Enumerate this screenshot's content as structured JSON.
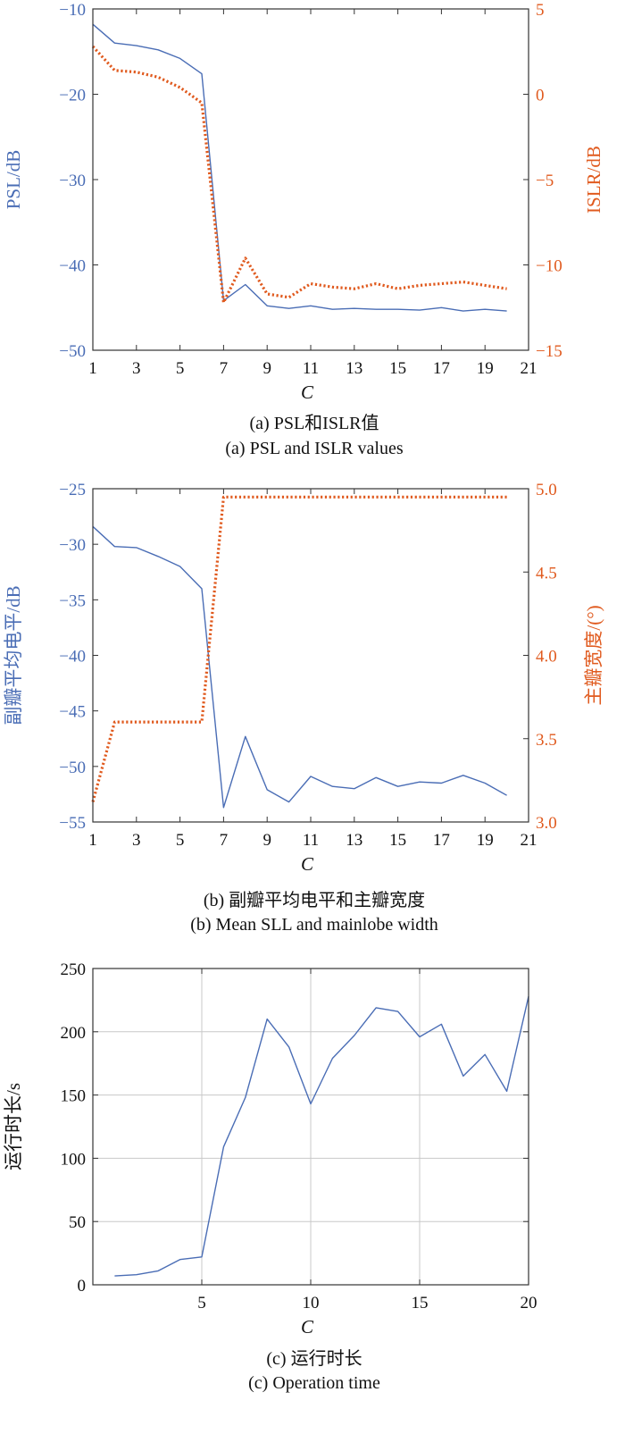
{
  "colors": {
    "blue": "#4a6db5",
    "orange": "#e05a1e",
    "axis": "#333333",
    "grid": "#c8c8c8",
    "text": "#111111"
  },
  "chart_data": [
    {
      "id": "a",
      "type": "line",
      "xlabel": "C",
      "xlim": [
        1,
        21
      ],
      "xticks": [
        1,
        3,
        5,
        7,
        9,
        11,
        13,
        15,
        17,
        19,
        21
      ],
      "grid": false,
      "ylabel_left": "PSL/dB",
      "ylim_left": [
        -50,
        -10
      ],
      "yticks_left": [
        -10,
        -20,
        -30,
        -40,
        -50
      ],
      "ylabel_right": "ISLR/dB",
      "ylim_right": [
        -15,
        5
      ],
      "yticks_right": [
        5,
        0,
        -5,
        -10,
        -15
      ],
      "x": [
        1,
        2,
        3,
        4,
        5,
        6,
        7,
        8,
        9,
        10,
        11,
        12,
        13,
        14,
        15,
        16,
        17,
        18,
        19,
        20
      ],
      "series": [
        {
          "axis": "left",
          "style": "solid",
          "color": "blue",
          "values": [
            -11.8,
            -14.0,
            -14.3,
            -14.8,
            -15.8,
            -17.6,
            -44.2,
            -42.3,
            -44.8,
            -45.1,
            -44.8,
            -45.2,
            -45.1,
            -45.2,
            -45.2,
            -45.3,
            -45.0,
            -45.4,
            -45.2,
            -45.4
          ]
        },
        {
          "axis": "right",
          "style": "dotted",
          "color": "orange",
          "values": [
            2.8,
            1.4,
            1.3,
            1.0,
            0.4,
            -0.5,
            -12.2,
            -9.6,
            -11.7,
            -11.9,
            -11.1,
            -11.3,
            -11.4,
            -11.1,
            -11.4,
            -11.2,
            -11.1,
            -11.0,
            -11.2,
            -11.4
          ]
        }
      ],
      "caption_cn": "(a) PSL和ISLR值",
      "caption_en": "(a) PSL and ISLR values"
    },
    {
      "id": "b",
      "type": "line",
      "xlabel": "C",
      "xlim": [
        1,
        21
      ],
      "xticks": [
        1,
        3,
        5,
        7,
        9,
        11,
        13,
        15,
        17,
        19,
        21
      ],
      "grid": false,
      "ylabel_left": "副瓣平均电平/dB",
      "ylim_left": [
        -55,
        -25
      ],
      "yticks_left": [
        -25,
        -30,
        -35,
        -40,
        -45,
        -50,
        -55
      ],
      "ylabel_right": "主瓣宽度/(°)",
      "ylim_right": [
        3.0,
        5.0
      ],
      "yticks_right": [
        "5.0",
        "4.5",
        "4.0",
        "3.5",
        "3.0"
      ],
      "x": [
        1,
        2,
        3,
        4,
        5,
        6,
        7,
        8,
        9,
        10,
        11,
        12,
        13,
        14,
        15,
        16,
        17,
        18,
        19,
        20
      ],
      "series": [
        {
          "axis": "left",
          "style": "solid",
          "color": "blue",
          "values": [
            -28.4,
            -30.2,
            -30.3,
            -31.1,
            -32.0,
            -34.0,
            -53.7,
            -47.3,
            -52.1,
            -53.2,
            -50.9,
            -51.8,
            -52.0,
            -51.0,
            -51.8,
            -51.4,
            -51.5,
            -50.8,
            -51.5,
            -52.6
          ]
        },
        {
          "axis": "right",
          "style": "dotted",
          "color": "orange",
          "values": [
            3.12,
            3.6,
            3.6,
            3.6,
            3.6,
            3.6,
            4.95,
            4.95,
            4.95,
            4.95,
            4.95,
            4.95,
            4.95,
            4.95,
            4.95,
            4.95,
            4.95,
            4.95,
            4.95,
            4.95
          ]
        }
      ],
      "caption_cn": "(b) 副瓣平均电平和主瓣宽度",
      "caption_en": "(b) Mean SLL and mainlobe width"
    },
    {
      "id": "c",
      "type": "line",
      "xlabel": "C",
      "xlim": [
        0,
        20
      ],
      "xticks": [
        5,
        10,
        15,
        20
      ],
      "grid": true,
      "ylabel_left": "运行时长/s",
      "ylim_left": [
        0,
        250
      ],
      "yticks_left": [
        0,
        50,
        100,
        150,
        200,
        250
      ],
      "x": [
        1,
        2,
        3,
        4,
        5,
        6,
        7,
        8,
        9,
        10,
        11,
        12,
        13,
        14,
        15,
        16,
        17,
        18,
        19,
        20
      ],
      "series": [
        {
          "axis": "left",
          "style": "solid",
          "color": "blue",
          "values": [
            7,
            8,
            11,
            20,
            22,
            109,
            148,
            210,
            188,
            143,
            179,
            197,
            219,
            216,
            196,
            206,
            165,
            182,
            153,
            228
          ]
        }
      ],
      "caption_cn": "(c) 运行时长",
      "caption_en": "(c) Operation time"
    }
  ]
}
